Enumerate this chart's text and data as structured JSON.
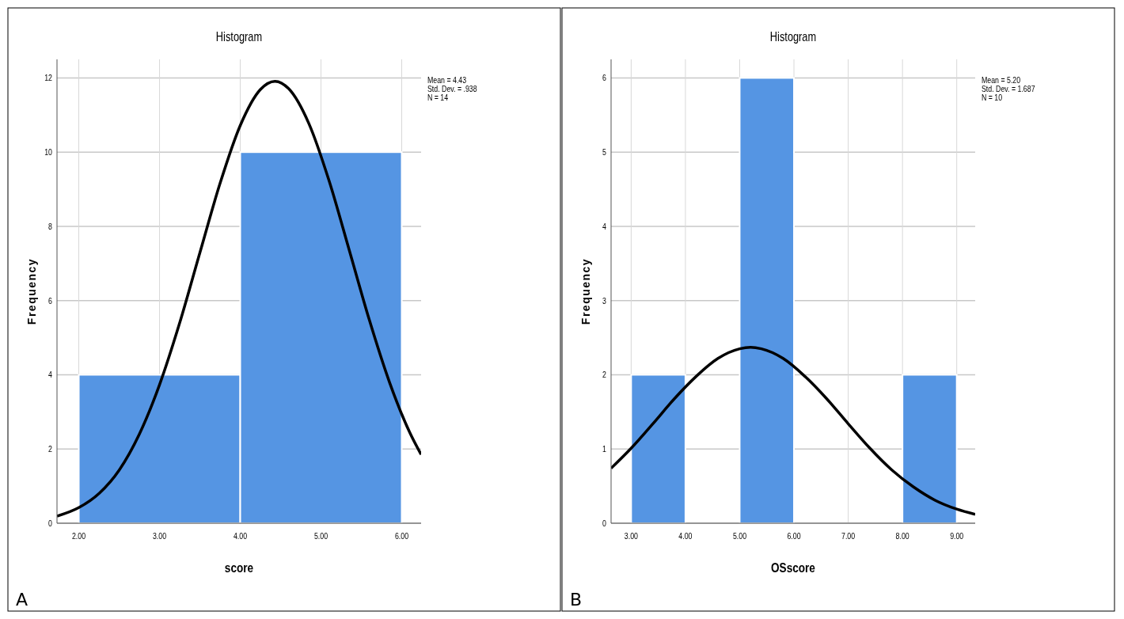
{
  "chart_data": [
    {
      "type": "histogram",
      "title": "Histogram",
      "xlabel": "score",
      "ylabel": "Frequency",
      "bins": [
        2,
        4,
        6
      ],
      "xlim": [
        1.73,
        6.24
      ],
      "xticks": [
        {
          "value": 2,
          "label": "2.00"
        },
        {
          "value": 3,
          "label": "3.00"
        },
        {
          "value": 4,
          "label": "4.00"
        },
        {
          "value": 5,
          "label": "5.00"
        },
        {
          "value": 6,
          "label": "6.00"
        }
      ],
      "ylim": [
        0,
        12.5
      ],
      "yticks": [
        0,
        2,
        4,
        6,
        8,
        10,
        12
      ],
      "grid": true,
      "annotations": [
        "Mean = 4.43",
        "Std. Dev. = .938",
        "N = 14",
        "A"
      ],
      "series": [
        {
          "color": "#5595e3",
          "values": [
            4,
            10
          ]
        },
        {
          "type": "line",
          "color": "#000000",
          "x": [
            1.73,
            2.0,
            2.25,
            2.5,
            2.75,
            3.0,
            3.25,
            3.5,
            3.75,
            4.0,
            4.25,
            4.43,
            4.6,
            4.85,
            5.1,
            5.35,
            5.6,
            5.85,
            6.1,
            6.24
          ],
          "values": [
            0.19,
            0.42,
            0.8,
            1.43,
            2.4,
            3.73,
            5.4,
            7.29,
            9.16,
            10.72,
            11.69,
            11.91,
            11.71,
            10.77,
            9.23,
            7.36,
            5.47,
            3.79,
            2.44,
            1.85
          ]
        }
      ]
    },
    {
      "type": "histogram",
      "title": "Histogram",
      "xlabel": "OSscore",
      "ylabel": "Frequency",
      "bins": [
        3,
        4,
        5,
        6,
        7,
        8,
        9
      ],
      "xlim": [
        2.63,
        9.34
      ],
      "xticks": [
        {
          "value": 3,
          "label": "3.00"
        },
        {
          "value": 4,
          "label": "4.00"
        },
        {
          "value": 5,
          "label": "5.00"
        },
        {
          "value": 6,
          "label": "6.00"
        },
        {
          "value": 7,
          "label": "7.00"
        },
        {
          "value": 8,
          "label": "8.00"
        },
        {
          "value": 9,
          "label": "9.00"
        }
      ],
      "ylim": [
        0,
        6.25
      ],
      "yticks": [
        0,
        1,
        2,
        3,
        4,
        5,
        6
      ],
      "grid": true,
      "annotations": [
        "Mean = 5.20",
        "Std. Dev. = 1.687",
        "N = 10",
        "B"
      ],
      "series": [
        {
          "color": "#5595e3",
          "values": [
            2,
            0,
            6,
            0,
            0,
            2
          ]
        },
        {
          "type": "line",
          "color": "#000000",
          "x": [
            2.63,
            3.0,
            3.4,
            3.8,
            4.2,
            4.6,
            5.0,
            5.2,
            5.4,
            5.8,
            6.2,
            6.6,
            7.0,
            7.4,
            7.8,
            8.2,
            8.6,
            9.0,
            9.34
          ],
          "values": [
            0.74,
            1.01,
            1.34,
            1.68,
            1.98,
            2.22,
            2.35,
            2.37,
            2.35,
            2.22,
            1.98,
            1.68,
            1.34,
            1.01,
            0.72,
            0.49,
            0.31,
            0.19,
            0.12
          ]
        }
      ]
    }
  ]
}
